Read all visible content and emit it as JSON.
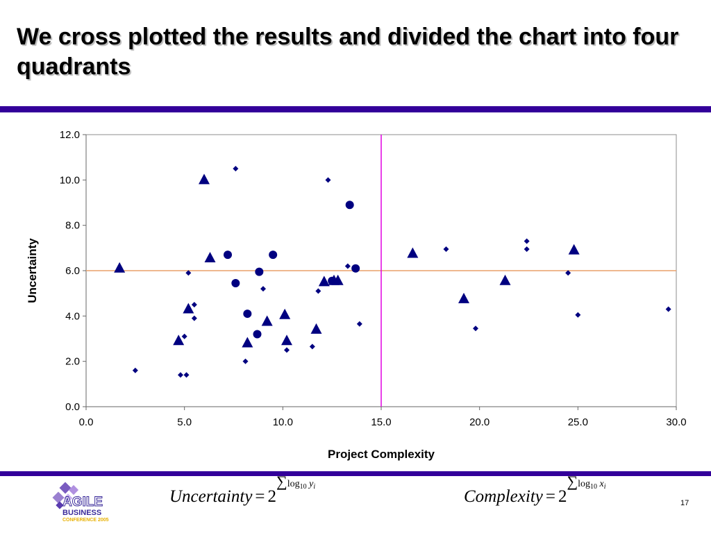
{
  "slide": {
    "title": "We cross plotted the results and divided the chart into four quadrants",
    "page_number": "17"
  },
  "colors": {
    "accent_bar": "#33009a",
    "marker": "#000080",
    "horizontal_divider": "#e8a06a",
    "vertical_divider": "#e000e0"
  },
  "logo": {
    "line1": "AGILE",
    "line2": "BUSINESS",
    "line3": "CONFERENCE 2005"
  },
  "formulas": {
    "uncertainty": {
      "lhs": "Uncertainty",
      "eq": "=",
      "base": "2",
      "sum": "∑",
      "log": "log",
      "log_base": "10",
      "var": "y",
      "index": "i"
    },
    "complexity": {
      "lhs": "Complexity",
      "eq": "=",
      "base": "2",
      "sum": "∑",
      "log": "log",
      "log_base": "10",
      "var": "x",
      "index": "i"
    }
  },
  "chart_data": {
    "type": "scatter",
    "xlabel": "Project Complexity",
    "ylabel": "Uncertainty",
    "xlim": [
      0,
      30
    ],
    "ylim": [
      0,
      12
    ],
    "x_ticks": [
      "0.0",
      "5.0",
      "10.0",
      "15.0",
      "20.0",
      "25.0",
      "30.0"
    ],
    "y_ticks": [
      "0.0",
      "2.0",
      "4.0",
      "6.0",
      "8.0",
      "10.0",
      "12.0"
    ],
    "grid": false,
    "dividers": {
      "x": 15.0,
      "y": 6.0
    },
    "series": [
      {
        "marker": "diamond",
        "points": [
          [
            2.5,
            1.6
          ],
          [
            4.8,
            1.4
          ],
          [
            5.1,
            1.4
          ],
          [
            5.0,
            3.1
          ],
          [
            5.5,
            3.9
          ],
          [
            5.5,
            4.5
          ],
          [
            5.2,
            5.9
          ],
          [
            7.6,
            10.5
          ],
          [
            8.1,
            2.0
          ],
          [
            9.0,
            5.2
          ],
          [
            10.2,
            2.5
          ],
          [
            11.5,
            2.65
          ],
          [
            11.8,
            5.1
          ],
          [
            12.3,
            10.0
          ],
          [
            13.3,
            6.2
          ],
          [
            13.9,
            3.65
          ],
          [
            18.3,
            6.95
          ],
          [
            19.8,
            3.45
          ],
          [
            22.4,
            7.3
          ],
          [
            22.4,
            6.95
          ],
          [
            24.5,
            5.9
          ],
          [
            25.0,
            4.05
          ],
          [
            29.6,
            4.3
          ]
        ]
      },
      {
        "marker": "triangle",
        "points": [
          [
            1.7,
            6.1
          ],
          [
            4.7,
            2.9
          ],
          [
            5.2,
            4.3
          ],
          [
            6.0,
            10.0
          ],
          [
            6.3,
            6.55
          ],
          [
            8.2,
            2.8
          ],
          [
            9.2,
            3.75
          ],
          [
            10.1,
            4.05
          ],
          [
            10.2,
            2.9
          ],
          [
            11.7,
            3.4
          ],
          [
            12.1,
            5.5
          ],
          [
            12.6,
            5.55
          ],
          [
            12.8,
            5.55
          ],
          [
            16.6,
            6.75
          ],
          [
            19.2,
            4.75
          ],
          [
            21.3,
            5.55
          ],
          [
            24.8,
            6.9
          ]
        ]
      },
      {
        "marker": "circle",
        "points": [
          [
            7.2,
            6.7
          ],
          [
            7.6,
            5.45
          ],
          [
            8.2,
            4.1
          ],
          [
            8.7,
            3.2
          ],
          [
            8.8,
            5.95
          ],
          [
            9.5,
            6.7
          ],
          [
            12.5,
            5.55
          ],
          [
            13.4,
            8.9
          ],
          [
            13.7,
            6.1
          ]
        ]
      }
    ]
  }
}
